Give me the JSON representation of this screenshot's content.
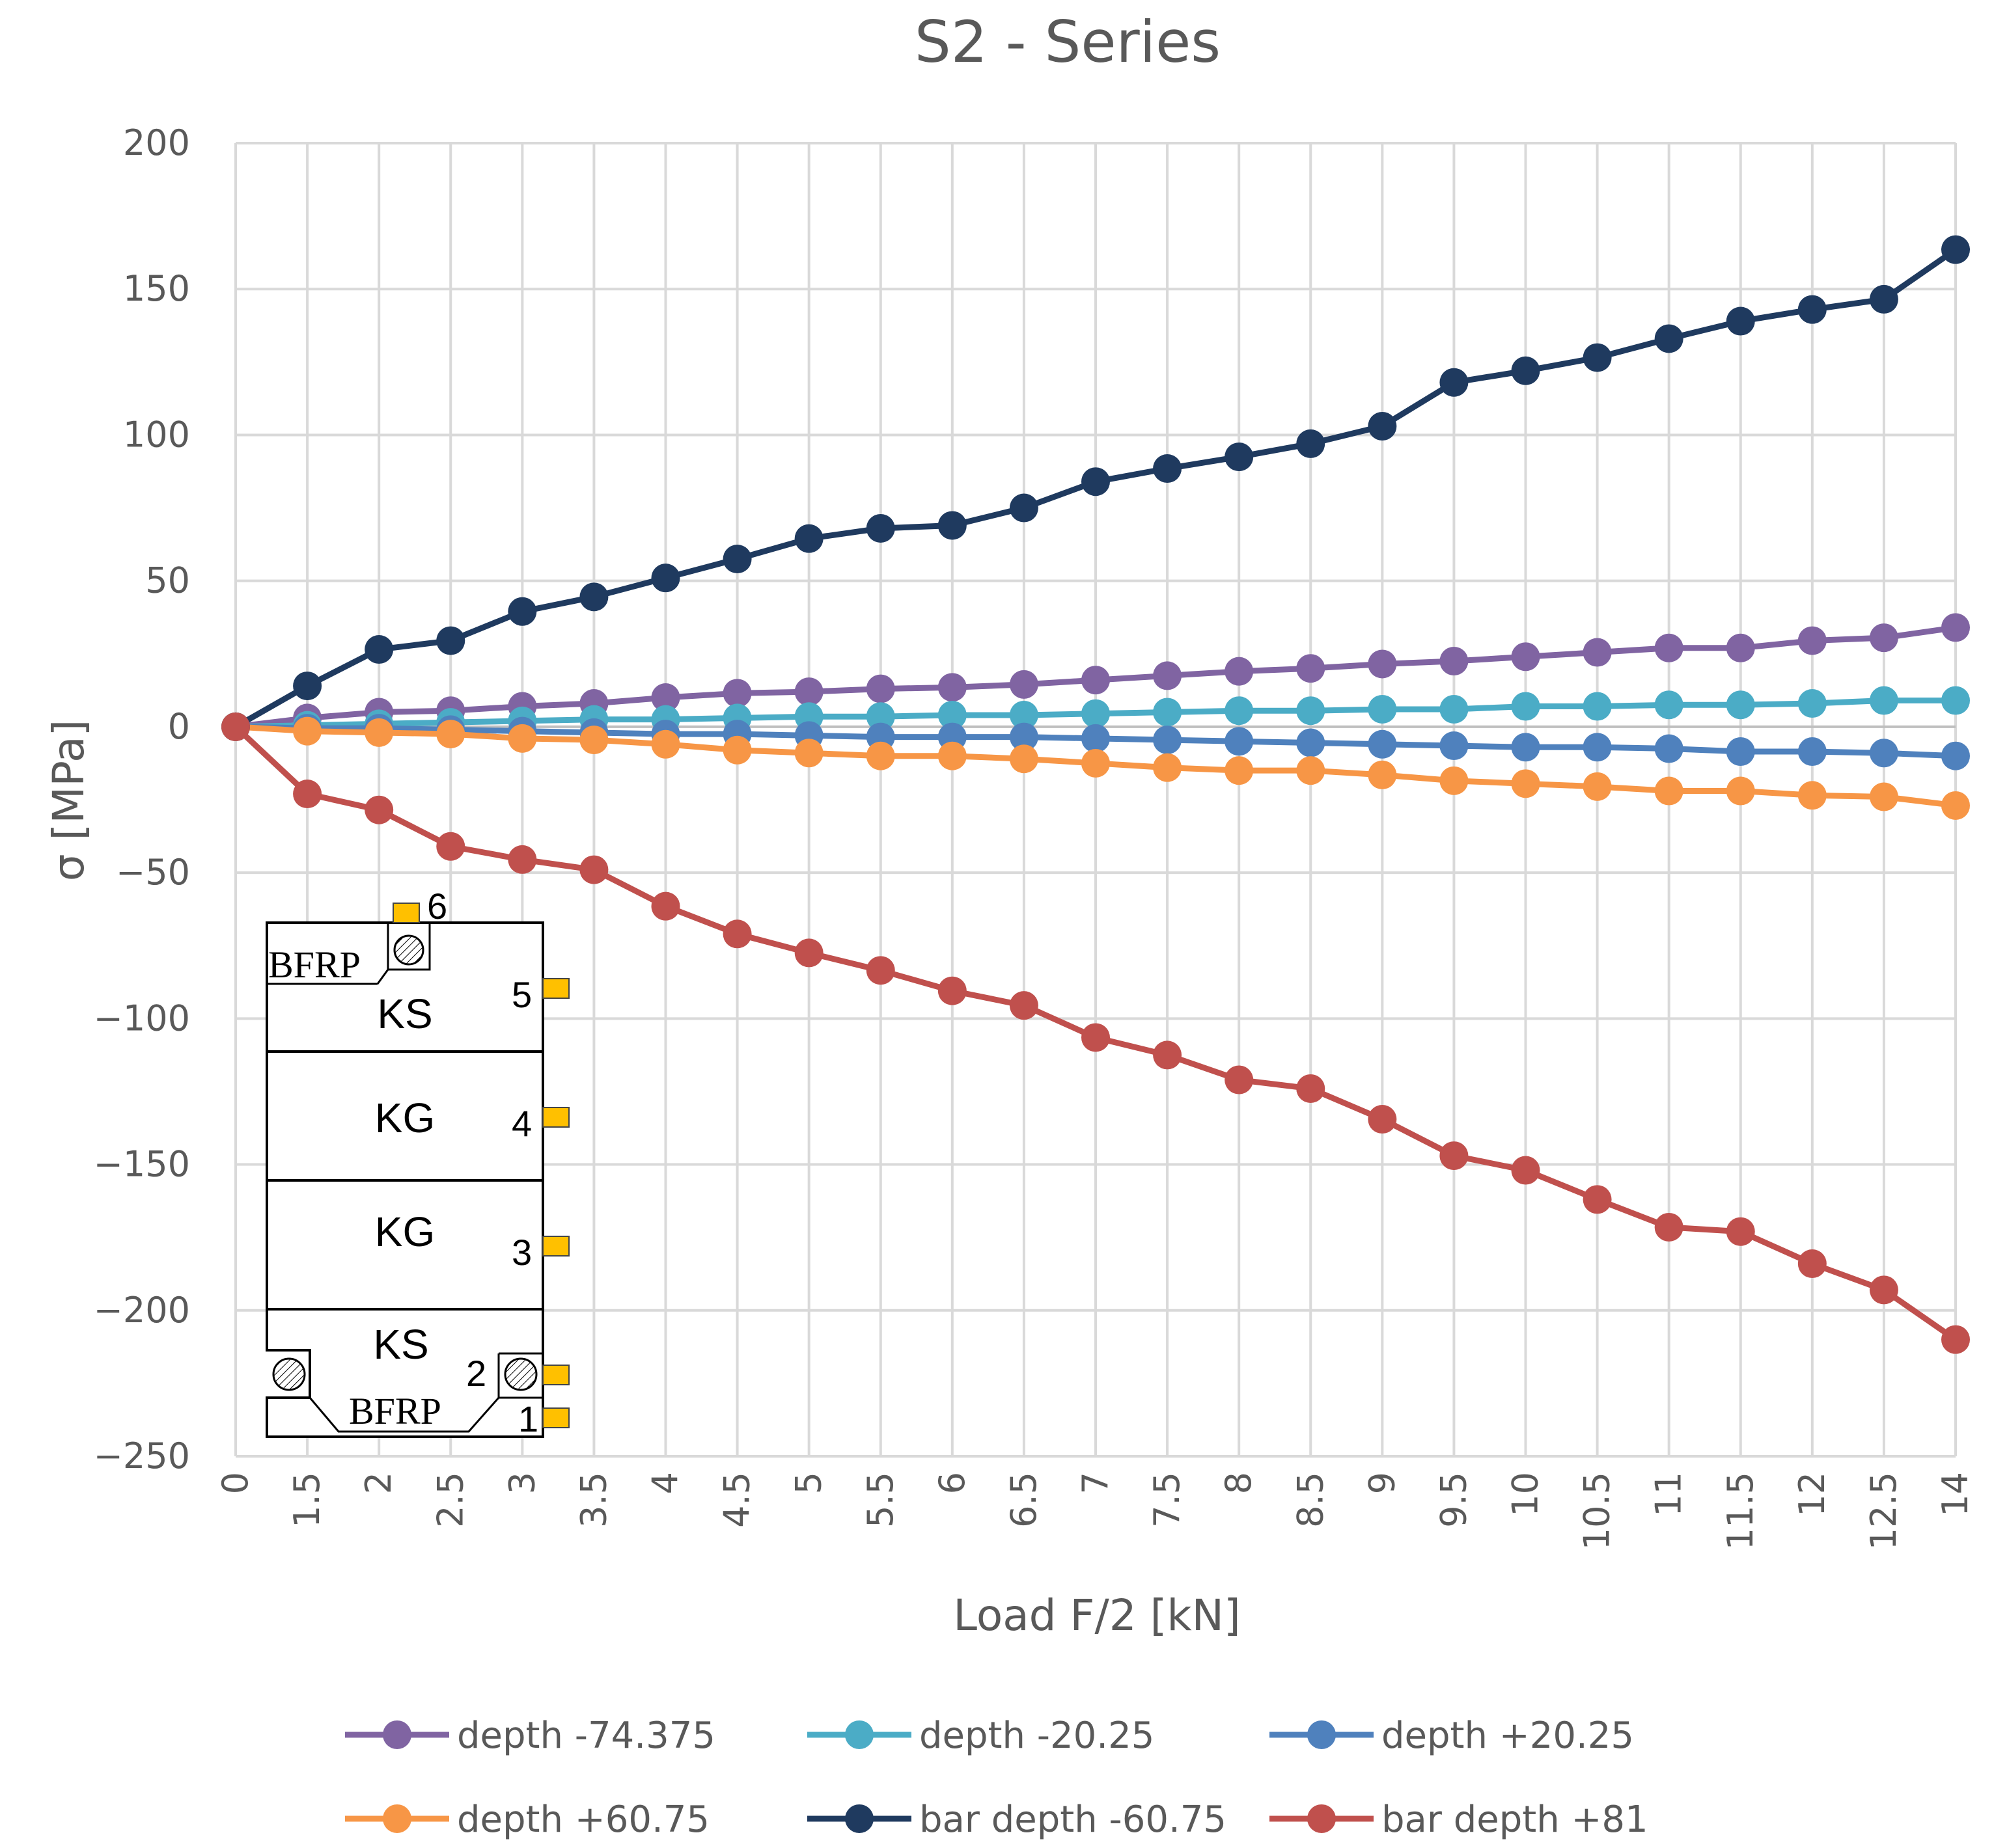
{
  "chart_data": {
    "type": "line",
    "title": "S2 - Series",
    "xlabel": "Load F/2 [kN]",
    "ylabel": "σ [MPa]",
    "ylim": [
      -250,
      200
    ],
    "yticks": [
      200,
      150,
      100,
      50,
      0,
      -50,
      -100,
      -150,
      -200,
      -250
    ],
    "grid": true,
    "legend_position": "bottom",
    "categories": [
      "0",
      "1.5",
      "2",
      "2.5",
      "3",
      "3.5",
      "4",
      "4.5",
      "5",
      "5.5",
      "6",
      "6.5",
      "7",
      "7.5",
      "8",
      "8.5",
      "9",
      "9.5",
      "10",
      "10.5",
      "11",
      "11.5",
      "12",
      "12.5",
      "14"
    ],
    "series": [
      {
        "name": "depth -74.375",
        "color": "#8064A2",
        "values": [
          0,
          3,
          5,
          5.5,
          7,
          8,
          10,
          11.5,
          12,
          13,
          13.5,
          14.5,
          16,
          17.5,
          19,
          20,
          21.5,
          22.5,
          24,
          25.5,
          27,
          27,
          29.5,
          30.5,
          34
        ]
      },
      {
        "name": "depth -20.25",
        "color": "#4BACC6",
        "values": [
          0,
          0.5,
          1,
          1.5,
          2,
          2.5,
          2.5,
          3,
          3.5,
          3.5,
          4,
          4,
          4.5,
          5,
          5.5,
          5.5,
          6,
          6,
          7,
          7,
          7.5,
          7.5,
          8,
          9,
          9
        ]
      },
      {
        "name": "depth +20.25",
        "color": "#4F81BD",
        "values": [
          0,
          -0.5,
          -0.5,
          -1,
          -1.5,
          -2,
          -2.5,
          -2.5,
          -3,
          -3.5,
          -3.5,
          -3.5,
          -4,
          -4.5,
          -5,
          -5.5,
          -6,
          -6.5,
          -7,
          -7,
          -7.5,
          -8.5,
          -8.5,
          -9,
          -10
        ]
      },
      {
        "name": "depth +60.75",
        "color": "#F79646",
        "values": [
          0,
          -1.5,
          -2,
          -2.5,
          -4,
          -4.5,
          -6,
          -8,
          -9,
          -10,
          -10,
          -11,
          -12.5,
          -14,
          -15,
          -15,
          -16.5,
          -18.5,
          -19.5,
          -20.5,
          -22,
          -22,
          -23.5,
          -24,
          -27
        ]
      },
      {
        "name": "bar depth -60.75",
        "color": "#1F3A5F",
        "values": [
          0,
          14,
          26.5,
          29.5,
          39.5,
          44.5,
          51,
          57.5,
          64.5,
          68,
          69,
          75,
          84,
          88.5,
          92.5,
          97,
          103,
          118,
          122,
          126.5,
          133,
          139,
          143,
          146.5,
          163.5
        ]
      },
      {
        "name": "bar depth +81",
        "color": "#C0504D",
        "values": [
          0,
          -23,
          -28.5,
          -41,
          -45.5,
          -49,
          -61.5,
          -71,
          -77.5,
          -83.5,
          -90.5,
          -95.5,
          -106.5,
          -112.5,
          -121,
          -124,
          -134.5,
          -147,
          -152,
          -162,
          -171.5,
          -173,
          -184,
          -193,
          -210
        ]
      }
    ],
    "inset": {
      "label_top": "KS",
      "label_mid1": "KG",
      "label_mid2": "KG",
      "label_bottom": "KS",
      "bfrp_top": "BFRP",
      "bfrp_bottom": "BFRP",
      "gauges": [
        "1",
        "2",
        "3",
        "4",
        "5",
        "6"
      ],
      "gauge_color": "#FFC000"
    }
  },
  "colors": {
    "grid": "#d9d9d9",
    "axis_text": "#595959"
  }
}
